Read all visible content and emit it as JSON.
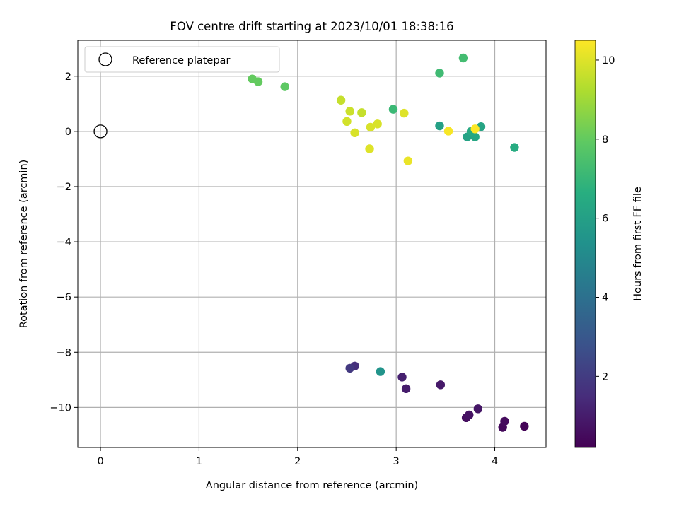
{
  "chart_data": {
    "type": "scatter",
    "title": "FOV centre drift starting at 2023/10/01 18:38:16",
    "xlabel": "Angular distance from reference (arcmin)",
    "ylabel": "Rotation from reference (arcmin)",
    "xlim": [
      -0.23,
      4.52
    ],
    "ylim": [
      -11.45,
      3.3
    ],
    "x_ticks": [
      0,
      1,
      2,
      3,
      4
    ],
    "x_tick_labels": [
      "0",
      "1",
      "2",
      "3",
      "4"
    ],
    "y_ticks": [
      2,
      0,
      -2,
      -4,
      -6,
      -8,
      -10
    ],
    "y_tick_labels": [
      "2",
      "0",
      "−2",
      "−4",
      "−6",
      "−8",
      "−10"
    ],
    "grid": true,
    "legend": {
      "placement": "top-left",
      "entries": [
        "Reference platepar"
      ]
    },
    "reference_point": {
      "x": 0,
      "y": 0
    },
    "colorbar": {
      "label": "Hours from first FF file",
      "range": [
        0.2,
        10.5
      ],
      "ticks": [
        2,
        4,
        6,
        8,
        10
      ],
      "tick_labels": [
        "2",
        "4",
        "6",
        "8",
        "10"
      ],
      "colormap": "viridis"
    },
    "points": [
      {
        "x": 4.3,
        "y": -10.68,
        "c": 0.3
      },
      {
        "x": 4.08,
        "y": -10.72,
        "c": 0.4
      },
      {
        "x": 4.1,
        "y": -10.5,
        "c": 0.5
      },
      {
        "x": 3.71,
        "y": -10.37,
        "c": 0.6
      },
      {
        "x": 3.74,
        "y": -10.27,
        "c": 0.7
      },
      {
        "x": 3.83,
        "y": -10.05,
        "c": 0.8
      },
      {
        "x": 3.45,
        "y": -9.18,
        "c": 0.9
      },
      {
        "x": 3.1,
        "y": -9.32,
        "c": 1.0
      },
      {
        "x": 3.06,
        "y": -8.9,
        "c": 1.1
      },
      {
        "x": 2.58,
        "y": -8.5,
        "c": 1.6
      },
      {
        "x": 2.53,
        "y": -8.58,
        "c": 1.9
      },
      {
        "x": 2.84,
        "y": -8.7,
        "c": 5.5
      },
      {
        "x": 3.44,
        "y": 0.2,
        "c": 6.0
      },
      {
        "x": 3.72,
        "y": -0.2,
        "c": 6.1
      },
      {
        "x": 3.86,
        "y": 0.17,
        "c": 6.2
      },
      {
        "x": 3.8,
        "y": -0.2,
        "c": 6.3
      },
      {
        "x": 3.76,
        "y": 0.0,
        "c": 6.4
      },
      {
        "x": 4.2,
        "y": -0.58,
        "c": 6.5
      },
      {
        "x": 2.97,
        "y": 0.8,
        "c": 7.1
      },
      {
        "x": 3.44,
        "y": 2.11,
        "c": 7.2
      },
      {
        "x": 3.68,
        "y": 2.66,
        "c": 7.3
      },
      {
        "x": 1.87,
        "y": 1.62,
        "c": 7.9
      },
      {
        "x": 1.6,
        "y": 1.8,
        "c": 8.0
      },
      {
        "x": 1.54,
        "y": 1.9,
        "c": 8.0
      },
      {
        "x": 2.44,
        "y": 1.13,
        "c": 9.6
      },
      {
        "x": 2.53,
        "y": 0.73,
        "c": 9.7
      },
      {
        "x": 2.65,
        "y": 0.68,
        "c": 9.6
      },
      {
        "x": 2.5,
        "y": 0.36,
        "c": 9.8
      },
      {
        "x": 2.58,
        "y": -0.05,
        "c": 9.9
      },
      {
        "x": 2.74,
        "y": 0.15,
        "c": 9.9
      },
      {
        "x": 2.81,
        "y": 0.27,
        "c": 9.9
      },
      {
        "x": 2.73,
        "y": -0.63,
        "c": 10.0
      },
      {
        "x": 3.08,
        "y": 0.66,
        "c": 10.0
      },
      {
        "x": 3.12,
        "y": -1.07,
        "c": 10.2
      },
      {
        "x": 3.53,
        "y": 0.01,
        "c": 10.4
      },
      {
        "x": 3.8,
        "y": 0.09,
        "c": 10.5
      }
    ]
  }
}
